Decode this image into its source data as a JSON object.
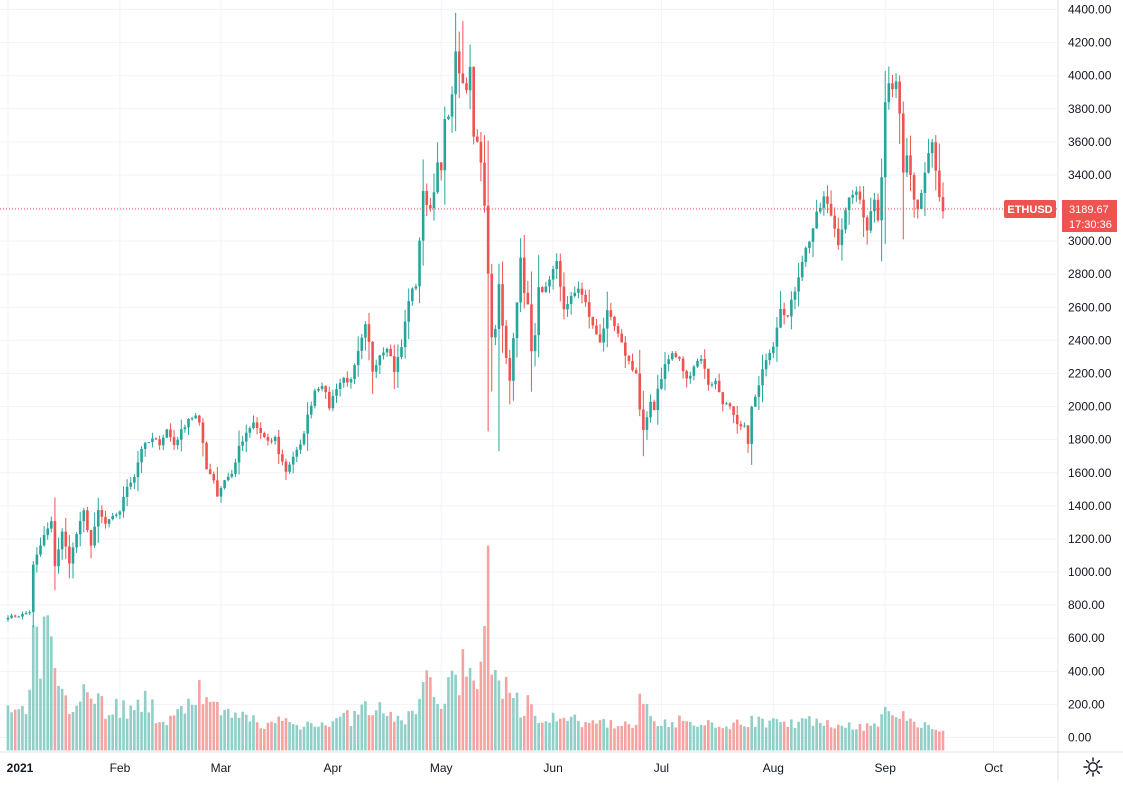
{
  "chart_data": {
    "type": "candlestick",
    "symbol": "ETHUSD",
    "last_price": "3189.67",
    "countdown": "17:30:36",
    "y_ticks": [
      "0.00",
      "200.00",
      "400.00",
      "600.00",
      "800.00",
      "1000.00",
      "1200.00",
      "1400.00",
      "1600.00",
      "1800.00",
      "2000.00",
      "2200.00",
      "2400.00",
      "2600.00",
      "2800.00",
      "3000.00",
      "3200.00",
      "3400.00",
      "3600.00",
      "3800.00",
      "4000.00",
      "4200.00",
      "4400.00"
    ],
    "x_ticks": [
      {
        "label": "2021",
        "day": 0,
        "bold": true
      },
      {
        "label": "Feb",
        "day": 31
      },
      {
        "label": "Mar",
        "day": 59
      },
      {
        "label": "Apr",
        "day": 90
      },
      {
        "label": "May",
        "day": 120
      },
      {
        "label": "Jun",
        "day": 151
      },
      {
        "label": "Jul",
        "day": 181
      },
      {
        "label": "Aug",
        "day": 212
      },
      {
        "label": "Sep",
        "day": 243
      },
      {
        "label": "Oct",
        "day": 273
      }
    ],
    "ylim": [
      0,
      4400
    ],
    "grid": true,
    "colors": {
      "up": "#26a69a",
      "down": "#ef5350",
      "up_volume": "#8fcfc7",
      "down_volume": "#f5a3a1",
      "price_line": "#ef5350",
      "grid": "#f0f3fa"
    },
    "close_anchors": [
      [
        0,
        730
      ],
      [
        3,
        735
      ],
      [
        6,
        760
      ],
      [
        7,
        1040
      ],
      [
        10,
        1220
      ],
      [
        12,
        1300
      ],
      [
        13,
        1040
      ],
      [
        15,
        1240
      ],
      [
        17,
        1060
      ],
      [
        19,
        1230
      ],
      [
        21,
        1365
      ],
      [
        23,
        1160
      ],
      [
        25,
        1370
      ],
      [
        27,
        1290
      ],
      [
        29,
        1330
      ],
      [
        31,
        1370
      ],
      [
        33,
        1520
      ],
      [
        35,
        1580
      ],
      [
        37,
        1750
      ],
      [
        40,
        1800
      ],
      [
        42,
        1780
      ],
      [
        44,
        1860
      ],
      [
        46,
        1770
      ],
      [
        48,
        1850
      ],
      [
        50,
        1930
      ],
      [
        52,
        1940
      ],
      [
        53,
        1890
      ],
      [
        54,
        1780
      ],
      [
        55,
        1630
      ],
      [
        57,
        1560
      ],
      [
        58,
        1460
      ],
      [
        60,
        1560
      ],
      [
        62,
        1590
      ],
      [
        64,
        1750
      ],
      [
        66,
        1830
      ],
      [
        68,
        1900
      ],
      [
        70,
        1840
      ],
      [
        72,
        1780
      ],
      [
        74,
        1810
      ],
      [
        75,
        1720
      ],
      [
        77,
        1610
      ],
      [
        79,
        1700
      ],
      [
        81,
        1760
      ],
      [
        83,
        1940
      ],
      [
        85,
        2100
      ],
      [
        87,
        2140
      ],
      [
        89,
        2000
      ],
      [
        91,
        2120
      ],
      [
        93,
        2170
      ],
      [
        95,
        2150
      ],
      [
        97,
        2320
      ],
      [
        99,
        2480
      ],
      [
        100,
        2380
      ],
      [
        101,
        2220
      ],
      [
        103,
        2320
      ],
      [
        105,
        2370
      ],
      [
        106,
        2300
      ],
      [
        107,
        2220
      ],
      [
        109,
        2360
      ],
      [
        111,
        2650
      ],
      [
        113,
        2740
      ],
      [
        115,
        3280
      ],
      [
        117,
        3200
      ],
      [
        119,
        3450
      ],
      [
        120,
        3420
      ],
      [
        121,
        3710
      ],
      [
        123,
        3860
      ],
      [
        124,
        4170
      ],
      [
        125,
        3980
      ],
      [
        126,
        3950
      ],
      [
        127,
        3900
      ],
      [
        128,
        4070
      ],
      [
        129,
        3650
      ],
      [
        130,
        3620
      ],
      [
        131,
        3470
      ],
      [
        132,
        3240
      ],
      [
        133,
        2790
      ],
      [
        134,
        2410
      ],
      [
        135,
        2460
      ],
      [
        136,
        2740
      ],
      [
        137,
        2510
      ],
      [
        138,
        2310
      ],
      [
        139,
        2140
      ],
      [
        140,
        2430
      ],
      [
        141,
        2620
      ],
      [
        142,
        2880
      ],
      [
        143,
        2710
      ],
      [
        144,
        2600
      ],
      [
        145,
        2320
      ],
      [
        146,
        2410
      ],
      [
        147,
        2700
      ],
      [
        148,
        2680
      ],
      [
        150,
        2780
      ],
      [
        152,
        2860
      ],
      [
        154,
        2600
      ],
      [
        156,
        2650
      ],
      [
        158,
        2720
      ],
      [
        160,
        2620
      ],
      [
        162,
        2480
      ],
      [
        164,
        2400
      ],
      [
        166,
        2560
      ],
      [
        168,
        2480
      ],
      [
        170,
        2370
      ],
      [
        172,
        2270
      ],
      [
        174,
        2200
      ],
      [
        175,
        1980
      ],
      [
        176,
        1850
      ],
      [
        177,
        1920
      ],
      [
        178,
        2030
      ],
      [
        179,
        1990
      ],
      [
        180,
        2110
      ],
      [
        182,
        2250
      ],
      [
        184,
        2320
      ],
      [
        186,
        2280
      ],
      [
        188,
        2160
      ],
      [
        190,
        2250
      ],
      [
        192,
        2300
      ],
      [
        194,
        2140
      ],
      [
        196,
        2150
      ],
      [
        198,
        2030
      ],
      [
        200,
        1990
      ],
      [
        202,
        1880
      ],
      [
        204,
        1870
      ],
      [
        205,
        1790
      ],
      [
        206,
        1990
      ],
      [
        208,
        2120
      ],
      [
        210,
        2300
      ],
      [
        212,
        2380
      ],
      [
        214,
        2610
      ],
      [
        216,
        2540
      ],
      [
        218,
        2710
      ],
      [
        220,
        2890
      ],
      [
        222,
        3010
      ],
      [
        224,
        3150
      ],
      [
        226,
        3260
      ],
      [
        228,
        3160
      ],
      [
        230,
        3000
      ],
      [
        232,
        3170
      ],
      [
        234,
        3300
      ],
      [
        236,
        3250
      ],
      [
        238,
        3080
      ],
      [
        240,
        3270
      ],
      [
        241,
        3150
      ],
      [
        242,
        3400
      ],
      [
        243,
        3830
      ],
      [
        244,
        3950
      ],
      [
        245,
        3920
      ],
      [
        246,
        3930
      ],
      [
        247,
        3800
      ],
      [
        248,
        3420
      ],
      [
        249,
        3530
      ],
      [
        250,
        3430
      ],
      [
        251,
        3280
      ],
      [
        252,
        3200
      ],
      [
        254,
        3430
      ],
      [
        256,
        3580
      ],
      [
        257,
        3410
      ],
      [
        258,
        3270
      ],
      [
        259,
        3160
      ]
    ],
    "volume_anchors": [
      [
        0,
        180
      ],
      [
        5,
        150
      ],
      [
        7,
        540
      ],
      [
        9,
        480
      ],
      [
        11,
        660
      ],
      [
        13,
        320
      ],
      [
        15,
        400
      ],
      [
        17,
        220
      ],
      [
        19,
        340
      ],
      [
        21,
        290
      ],
      [
        23,
        230
      ],
      [
        25,
        270
      ],
      [
        27,
        180
      ],
      [
        29,
        190
      ],
      [
        31,
        200
      ],
      [
        33,
        180
      ],
      [
        35,
        140
      ],
      [
        37,
        230
      ],
      [
        39,
        200
      ],
      [
        41,
        150
      ],
      [
        43,
        130
      ],
      [
        45,
        110
      ],
      [
        47,
        130
      ],
      [
        49,
        210
      ],
      [
        51,
        230
      ],
      [
        53,
        420
      ],
      [
        55,
        200
      ],
      [
        57,
        170
      ],
      [
        59,
        150
      ],
      [
        61,
        140
      ],
      [
        63,
        120
      ],
      [
        65,
        130
      ],
      [
        67,
        120
      ],
      [
        69,
        100
      ],
      [
        71,
        90
      ],
      [
        73,
        80
      ],
      [
        75,
        110
      ],
      [
        77,
        100
      ],
      [
        79,
        80
      ],
      [
        81,
        70
      ],
      [
        83,
        90
      ],
      [
        85,
        110
      ],
      [
        87,
        100
      ],
      [
        89,
        90
      ],
      [
        91,
        100
      ],
      [
        93,
        130
      ],
      [
        95,
        120
      ],
      [
        97,
        140
      ],
      [
        99,
        200
      ],
      [
        101,
        140
      ],
      [
        103,
        160
      ],
      [
        105,
        130
      ],
      [
        107,
        120
      ],
      [
        109,
        140
      ],
      [
        111,
        130
      ],
      [
        113,
        180
      ],
      [
        115,
        340
      ],
      [
        117,
        300
      ],
      [
        119,
        260
      ],
      [
        121,
        280
      ],
      [
        123,
        350
      ],
      [
        124,
        390
      ],
      [
        125,
        420
      ],
      [
        127,
        380
      ],
      [
        129,
        330
      ],
      [
        131,
        420
      ],
      [
        132,
        520
      ],
      [
        133,
        800
      ],
      [
        134,
        560
      ],
      [
        135,
        460
      ],
      [
        136,
        380
      ],
      [
        137,
        370
      ],
      [
        138,
        300
      ],
      [
        140,
        250
      ],
      [
        142,
        200
      ],
      [
        144,
        200
      ],
      [
        146,
        170
      ],
      [
        148,
        150
      ],
      [
        150,
        120
      ],
      [
        152,
        140
      ],
      [
        154,
        120
      ],
      [
        156,
        110
      ],
      [
        158,
        100
      ],
      [
        160,
        80
      ],
      [
        162,
        90
      ],
      [
        164,
        80
      ],
      [
        166,
        100
      ],
      [
        168,
        90
      ],
      [
        170,
        80
      ],
      [
        172,
        80
      ],
      [
        174,
        100
      ],
      [
        176,
        300
      ],
      [
        177,
        260
      ],
      [
        178,
        150
      ],
      [
        180,
        120
      ],
      [
        182,
        100
      ],
      [
        184,
        110
      ],
      [
        186,
        100
      ],
      [
        188,
        90
      ],
      [
        190,
        80
      ],
      [
        192,
        70
      ],
      [
        194,
        80
      ],
      [
        196,
        70
      ],
      [
        198,
        60
      ],
      [
        200,
        80
      ],
      [
        202,
        100
      ],
      [
        204,
        80
      ],
      [
        206,
        120
      ],
      [
        208,
        100
      ],
      [
        210,
        100
      ],
      [
        212,
        110
      ],
      [
        214,
        160
      ],
      [
        216,
        110
      ],
      [
        218,
        100
      ],
      [
        220,
        110
      ],
      [
        222,
        100
      ],
      [
        224,
        90
      ],
      [
        226,
        80
      ],
      [
        228,
        80
      ],
      [
        230,
        90
      ],
      [
        232,
        80
      ],
      [
        234,
        80
      ],
      [
        236,
        70
      ],
      [
        238,
        70
      ],
      [
        240,
        80
      ],
      [
        242,
        130
      ],
      [
        243,
        150
      ],
      [
        245,
        140
      ],
      [
        246,
        120
      ],
      [
        247,
        100
      ],
      [
        248,
        240
      ],
      [
        249,
        120
      ],
      [
        250,
        100
      ],
      [
        251,
        80
      ],
      [
        252,
        70
      ],
      [
        254,
        90
      ],
      [
        256,
        80
      ],
      [
        257,
        60
      ],
      [
        258,
        50
      ],
      [
        259,
        30
      ]
    ]
  }
}
